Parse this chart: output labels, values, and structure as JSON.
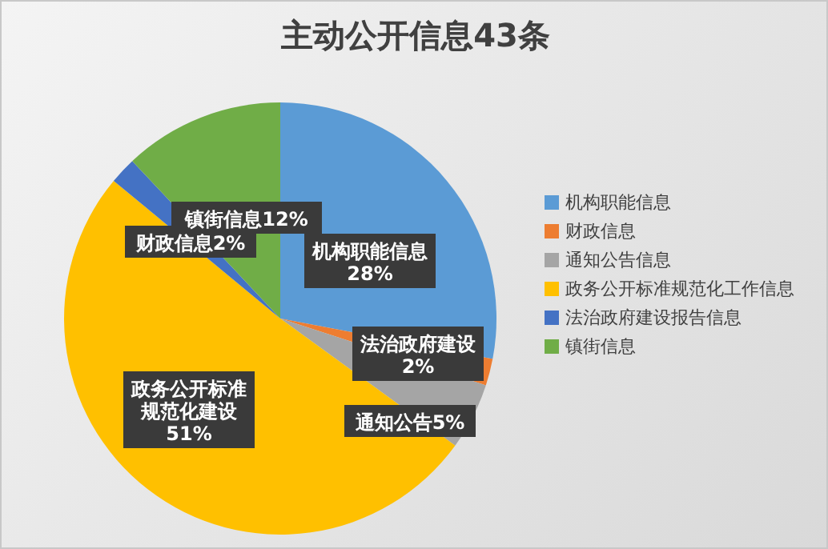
{
  "chart_data": {
    "type": "pie",
    "title": "主动公开信息43条",
    "categories": [
      "机构职能信息",
      "财政信息",
      "通知公告信息",
      "政务公开标准规范化工作信息",
      "法治政府建设报告信息",
      "镇街信息"
    ],
    "values": [
      28,
      2,
      5,
      51,
      2,
      12
    ],
    "colors": [
      "#5b9bd5",
      "#ed7d31",
      "#a5a5a5",
      "#ffc000",
      "#4472c4",
      "#70ad47"
    ],
    "value_labels": [
      "机构职能信息28%",
      "法治政府建设2%",
      "通知公告5%",
      "政务公开标准规范化建设51%",
      "财政信息2%",
      "镇街信息12%"
    ],
    "legend": "right"
  }
}
